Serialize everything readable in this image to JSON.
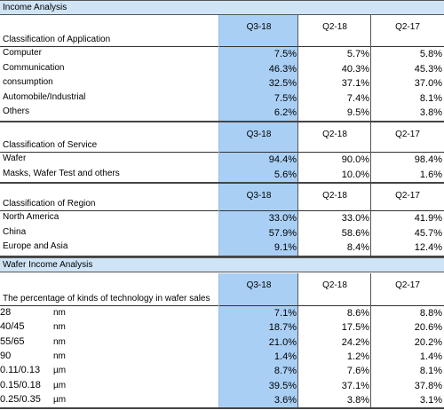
{
  "header": {
    "title": "Income Analysis"
  },
  "sections": [
    {
      "title": "Classification of Application",
      "columns": [
        "Q3-18",
        "Q2-18",
        "Q2-17"
      ],
      "rows": [
        {
          "label": "Computer",
          "values": [
            "7.5%",
            "5.7%",
            "5.8%"
          ]
        },
        {
          "label": "Communication",
          "values": [
            "46.3%",
            "40.3%",
            "45.3%"
          ]
        },
        {
          "label": "consumption",
          "values": [
            "32.5%",
            "37.1%",
            "37.0%"
          ]
        },
        {
          "label": "Automobile/Industrial",
          "values": [
            "7.5%",
            "7.4%",
            "8.1%"
          ]
        },
        {
          "label": "Others",
          "values": [
            "6.2%",
            "9.5%",
            "3.8%"
          ]
        }
      ]
    },
    {
      "title": "Classification of Service",
      "columns": [
        "Q3-18",
        "Q2-18",
        "Q2-17"
      ],
      "rows": [
        {
          "label": "Wafer",
          "values": [
            "94.4%",
            "90.0%",
            "98.4%"
          ]
        },
        {
          "label": "Masks, Wafer Test and others",
          "values": [
            "5.6%",
            "10.0%",
            "1.6%"
          ]
        }
      ]
    },
    {
      "title": "Classification of Region",
      "columns": [
        "Q3-18",
        "Q2-18",
        "Q2-17"
      ],
      "rows": [
        {
          "label": "North America",
          "values": [
            "33.0%",
            "33.0%",
            "41.9%"
          ]
        },
        {
          "label": "China",
          "values": [
            "57.9%",
            "58.6%",
            "45.7%"
          ]
        },
        {
          "label": "Europe and Asia",
          "values": [
            "9.1%",
            "8.4%",
            "12.4%"
          ]
        }
      ]
    }
  ],
  "wafer_header": {
    "title": "Wafer Income Analysis"
  },
  "wafer_section": {
    "title": "The percentage of kinds of technology in wafer sales",
    "columns": [
      "Q3-18",
      "Q2-18",
      "Q2-17"
    ],
    "rows": [
      {
        "label": "28",
        "unit": "nm",
        "values": [
          "7.1%",
          "8.6%",
          "8.8%"
        ]
      },
      {
        "label": "40/45",
        "unit": "nm",
        "values": [
          "18.7%",
          "17.5%",
          "20.6%"
        ]
      },
      {
        "label": "55/65",
        "unit": "nm",
        "values": [
          "21.0%",
          "24.2%",
          "20.2%"
        ]
      },
      {
        "label": "90",
        "unit": "nm",
        "values": [
          "1.4%",
          "1.2%",
          "1.4%"
        ]
      },
      {
        "label": "0.11/0.13",
        "unit": "µm",
        "values": [
          "8.7%",
          "7.6%",
          "8.1%"
        ]
      },
      {
        "label": "0.15/0.18",
        "unit": "µm",
        "values": [
          "39.5%",
          "37.1%",
          "37.8%"
        ]
      },
      {
        "label": "0.25/0.35",
        "unit": "µm",
        "values": [
          "3.6%",
          "3.8%",
          "3.1%"
        ]
      }
    ]
  }
}
